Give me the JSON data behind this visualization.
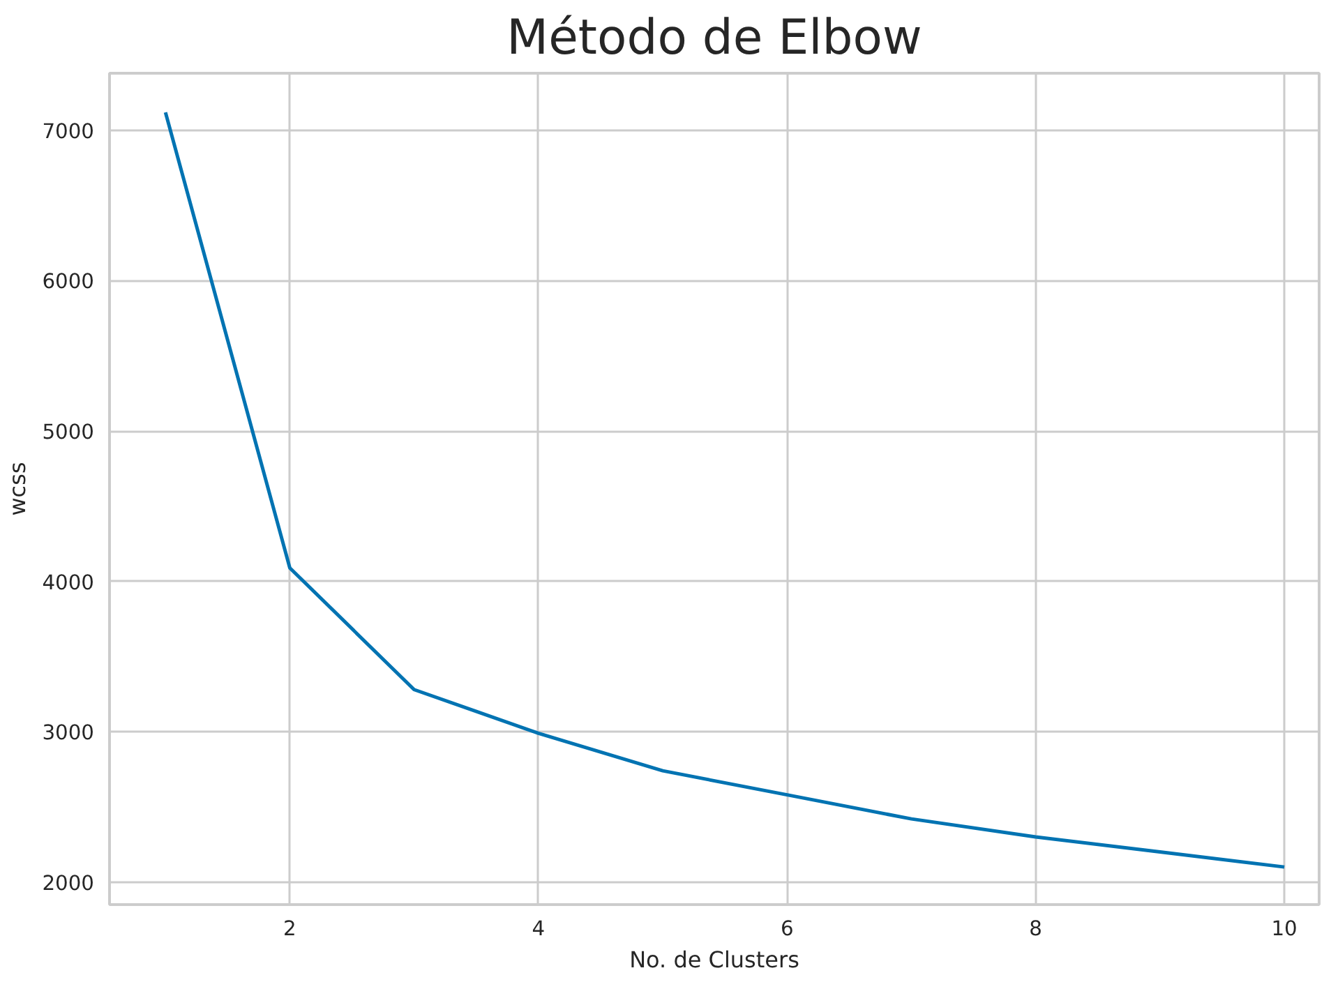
{
  "chart_data": {
    "type": "line",
    "title": "Método de Elbow",
    "xlabel": "No. de Clusters",
    "ylabel": "wcss",
    "x": [
      1,
      2,
      3,
      4,
      5,
      6,
      7,
      8,
      9,
      10
    ],
    "series": [
      {
        "color": "#0173b2",
        "values": [
          7120,
          4090,
          3280,
          2990,
          2740,
          2580,
          2420,
          2300,
          2200,
          2100
        ]
      }
    ],
    "xlim": [
      0.55,
      10.28
    ],
    "ylim": [
      1850,
      7380
    ],
    "xticks": [
      2,
      4,
      6,
      8,
      10
    ],
    "yticks": [
      2000,
      3000,
      4000,
      5000,
      6000,
      7000
    ],
    "grid": true,
    "marker": "none",
    "line_style": "solid"
  }
}
